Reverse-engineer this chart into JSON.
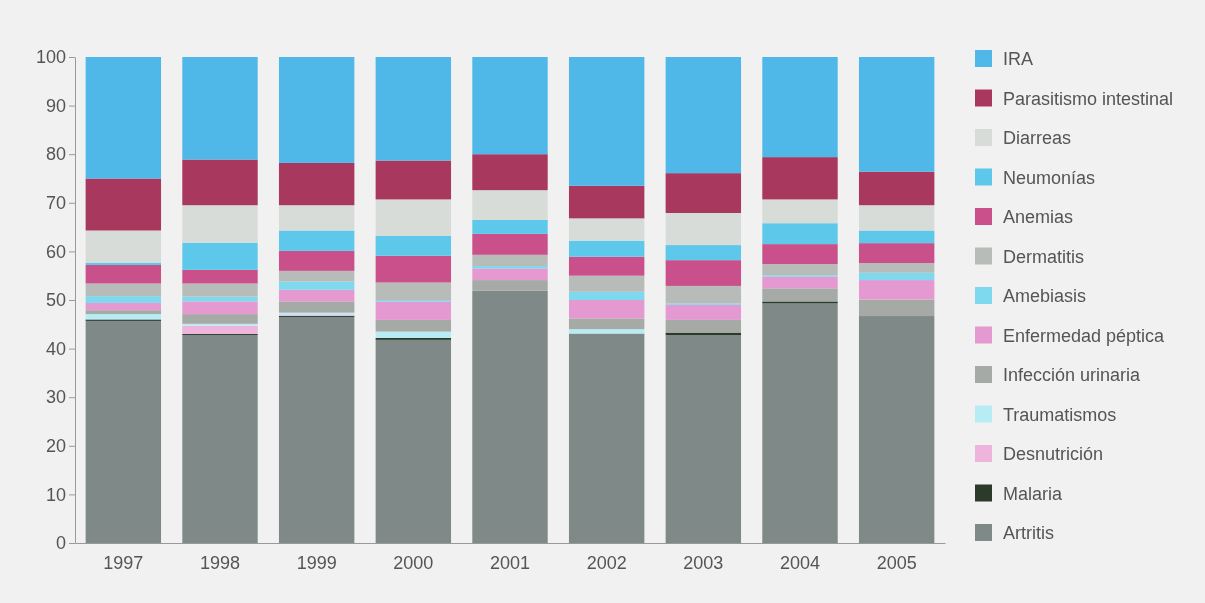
{
  "chart_data": {
    "type": "bar",
    "stacked": true,
    "categories": [
      "1997",
      "1998",
      "1999",
      "2000",
      "2001",
      "2002",
      "2003",
      "2004",
      "2005"
    ],
    "ylim": [
      0,
      100
    ],
    "yticks": [
      0,
      10,
      20,
      30,
      40,
      50,
      60,
      70,
      80,
      90,
      100
    ],
    "grid": false,
    "legend": "right",
    "series": [
      {
        "name": "Artritis",
        "color": "#7f8a88",
        "values": [
          45.7,
          42.8,
          46.5,
          41.8,
          51.9,
          43.1,
          42.8,
          49.3,
          46.7
        ]
      },
      {
        "name": "Malaria",
        "color": "#2c3a2c",
        "values": [
          0.3,
          0.2,
          0.2,
          0.4,
          0,
          0,
          0.5,
          0.4,
          0
        ]
      },
      {
        "name": "Desnutrición",
        "color": "#eeb4dc",
        "values": [
          0,
          1.7,
          0.2,
          0,
          0,
          0,
          0,
          0,
          0
        ]
      },
      {
        "name": "Traumatismos",
        "color": "#b8ecf4",
        "values": [
          1.1,
          0.4,
          0.5,
          1.3,
          0,
          0.9,
          0,
          0,
          0
        ]
      },
      {
        "name": "Infección urinaria",
        "color": "#a6aaa6",
        "values": [
          0.8,
          2.0,
          2.3,
          2.4,
          2.2,
          2.2,
          2.6,
          2.7,
          3.4
        ]
      },
      {
        "name": "Enfermedad péptica",
        "color": "#e49ad0",
        "values": [
          1.5,
          2.6,
          2.4,
          3.8,
          2.4,
          3.8,
          3.1,
          2.4,
          4.0
        ]
      },
      {
        "name": "Amebiasis",
        "color": "#7ed8ee",
        "values": [
          1.4,
          1.0,
          1.7,
          0.3,
          0.5,
          1.7,
          0.3,
          0.3,
          1.5
        ]
      },
      {
        "name": "Dermatitis",
        "color": "#b8bcb8",
        "values": [
          2.6,
          2.7,
          2.2,
          3.6,
          2.3,
          3.3,
          3.6,
          2.3,
          2.0
        ]
      },
      {
        "name": "Anemias",
        "color": "#c9508a",
        "values": [
          3.8,
          2.8,
          4.1,
          5.5,
          4.3,
          3.9,
          5.3,
          4.1,
          4.1
        ]
      },
      {
        "name": "Neumonías",
        "color": "#5ec8ea",
        "values": [
          0.5,
          5.6,
          4.2,
          4.1,
          2.9,
          3.3,
          3.1,
          4.3,
          2.6
        ]
      },
      {
        "name": "Diarreas",
        "color": "#d8dcd8",
        "values": [
          6.6,
          7.7,
          5.2,
          7.5,
          6.1,
          4.6,
          6.6,
          4.9,
          5.2
        ]
      },
      {
        "name": "Parasitismo intestinal",
        "color": "#a8385e",
        "values": [
          10.7,
          9.4,
          8.7,
          8.0,
          7.4,
          6.7,
          8.2,
          8.7,
          6.9
        ]
      },
      {
        "name": "IRA",
        "color": "#4fb8e8",
        "values": [
          25.0,
          21.1,
          21.8,
          21.3,
          20.0,
          26.5,
          23.9,
          20.6,
          23.6
        ]
      }
    ]
  }
}
